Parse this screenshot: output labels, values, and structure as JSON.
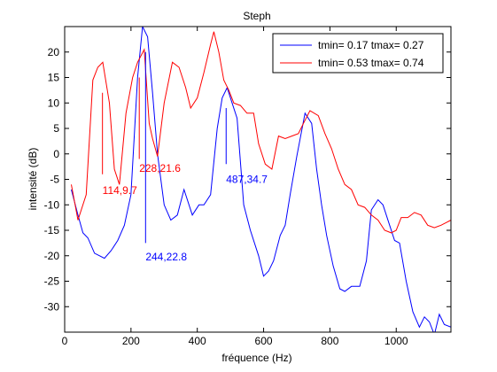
{
  "chart_data": {
    "type": "line",
    "title": "Steph",
    "xlabel": "fréquence (Hz)",
    "ylabel": "intensité (dB)",
    "xlim": [
      0,
      1165
    ],
    "ylim": [
      -35,
      25
    ],
    "xticks": [
      0,
      200,
      400,
      600,
      800,
      1000
    ],
    "yticks": [
      -30,
      -25,
      -20,
      -15,
      -10,
      -5,
      0,
      5,
      10,
      15,
      20
    ],
    "legend_position": "top-right",
    "series": [
      {
        "name": "tmin= 0.17 tmax= 0.27",
        "color": "#0000ff",
        "points": [
          [
            20,
            -7
          ],
          [
            40,
            -12
          ],
          [
            55,
            -15.5
          ],
          [
            70,
            -16.5
          ],
          [
            90,
            -19.5
          ],
          [
            120,
            -20.5
          ],
          [
            140,
            -19
          ],
          [
            160,
            -17
          ],
          [
            180,
            -14
          ],
          [
            200,
            -8
          ],
          [
            220,
            15
          ],
          [
            235,
            25
          ],
          [
            250,
            23
          ],
          [
            265,
            12
          ],
          [
            280,
            0
          ],
          [
            300,
            -10
          ],
          [
            320,
            -13
          ],
          [
            340,
            -12
          ],
          [
            360,
            -7
          ],
          [
            385,
            -12
          ],
          [
            405,
            -10
          ],
          [
            420,
            -10
          ],
          [
            440,
            -8
          ],
          [
            460,
            5
          ],
          [
            475,
            11
          ],
          [
            490,
            13
          ],
          [
            505,
            10
          ],
          [
            520,
            7
          ],
          [
            540,
            -10
          ],
          [
            560,
            -15
          ],
          [
            585,
            -20
          ],
          [
            600,
            -24
          ],
          [
            615,
            -23
          ],
          [
            630,
            -21
          ],
          [
            650,
            -16
          ],
          [
            665,
            -14
          ],
          [
            680,
            -8
          ],
          [
            700,
            -0.5
          ],
          [
            725,
            8
          ],
          [
            745,
            6
          ],
          [
            760,
            -3
          ],
          [
            775,
            -10
          ],
          [
            790,
            -16
          ],
          [
            810,
            -22
          ],
          [
            830,
            -26.5
          ],
          [
            845,
            -27
          ],
          [
            865,
            -26
          ],
          [
            880,
            -26
          ],
          [
            890,
            -26
          ],
          [
            910,
            -21
          ],
          [
            925,
            -11
          ],
          [
            945,
            -9
          ],
          [
            960,
            -10
          ],
          [
            980,
            -14
          ],
          [
            995,
            -17
          ],
          [
            1010,
            -17.5
          ],
          [
            1030,
            -25
          ],
          [
            1050,
            -31
          ],
          [
            1070,
            -34
          ],
          [
            1085,
            -32
          ],
          [
            1100,
            -33
          ],
          [
            1115,
            -35.5
          ],
          [
            1130,
            -31.5
          ],
          [
            1145,
            -33.5
          ],
          [
            1165,
            -34
          ]
        ]
      },
      {
        "name": "tmin= 0.53 tmax= 0.74",
        "color": "#ff0000",
        "points": [
          [
            20,
            -6
          ],
          [
            40,
            -13
          ],
          [
            65,
            -8
          ],
          [
            85,
            14.5
          ],
          [
            100,
            17
          ],
          [
            115,
            18
          ],
          [
            135,
            10
          ],
          [
            150,
            -3
          ],
          [
            165,
            -6
          ],
          [
            185,
            8
          ],
          [
            205,
            15
          ],
          [
            220,
            18
          ],
          [
            240,
            20.5
          ],
          [
            255,
            6
          ],
          [
            265,
            3
          ],
          [
            280,
            -0.5
          ],
          [
            300,
            10
          ],
          [
            325,
            18
          ],
          [
            345,
            17
          ],
          [
            365,
            13
          ],
          [
            380,
            9
          ],
          [
            400,
            11
          ],
          [
            420,
            16
          ],
          [
            440,
            21.5
          ],
          [
            450,
            24
          ],
          [
            465,
            20
          ],
          [
            480,
            14.5
          ],
          [
            495,
            12.5
          ],
          [
            510,
            10
          ],
          [
            530,
            9.5
          ],
          [
            550,
            8
          ],
          [
            570,
            8
          ],
          [
            585,
            2
          ],
          [
            605,
            -2
          ],
          [
            625,
            -3
          ],
          [
            645,
            3.5
          ],
          [
            665,
            3
          ],
          [
            685,
            3.5
          ],
          [
            705,
            4
          ],
          [
            720,
            6
          ],
          [
            740,
            8.5
          ],
          [
            765,
            7.5
          ],
          [
            785,
            4
          ],
          [
            805,
            1
          ],
          [
            825,
            -3
          ],
          [
            845,
            -6
          ],
          [
            865,
            -7
          ],
          [
            885,
            -10
          ],
          [
            905,
            -10.5
          ],
          [
            925,
            -12
          ],
          [
            945,
            -13
          ],
          [
            965,
            -15
          ],
          [
            985,
            -15.5
          ],
          [
            1000,
            -15
          ],
          [
            1015,
            -12.5
          ],
          [
            1035,
            -12.5
          ],
          [
            1055,
            -11.5
          ],
          [
            1075,
            -12
          ],
          [
            1095,
            -14
          ],
          [
            1115,
            -14.5
          ],
          [
            1135,
            -14
          ],
          [
            1150,
            -13.5
          ],
          [
            1165,
            -13
          ]
        ]
      }
    ],
    "annotations": [
      {
        "text": "114,9.7",
        "color": "#ff0000",
        "x": 114,
        "y_top": 12,
        "y_bottom": -4,
        "label_x": 114,
        "label_y": -7.2
      },
      {
        "text": "228,21.6",
        "color": "#ff0000",
        "x": 225,
        "y_top": 15,
        "y_bottom": -1,
        "label_x": 225,
        "label_y": -2.8
      },
      {
        "text": "244,22.8",
        "color": "#0000ff",
        "x": 244,
        "y_top": 20,
        "y_bottom": -17.5,
        "label_x": 244,
        "label_y": -20.2
      },
      {
        "text": "487,34.7",
        "color": "#0000ff",
        "x": 487,
        "y_top": 9,
        "y_bottom": -2,
        "label_x": 487,
        "label_y": -5
      }
    ]
  }
}
